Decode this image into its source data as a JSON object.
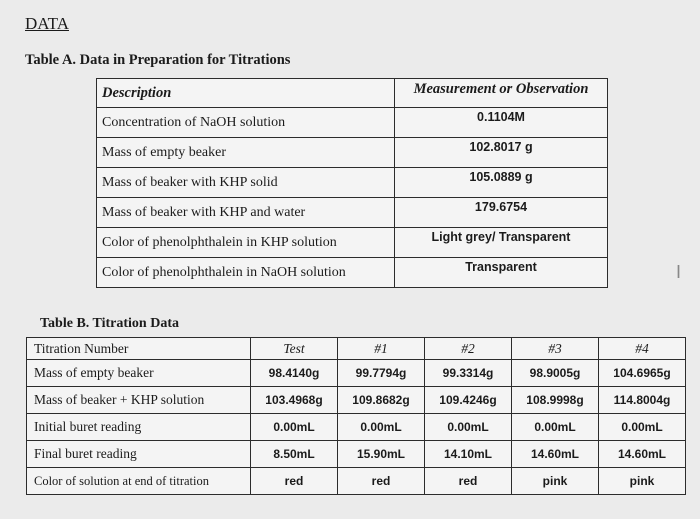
{
  "heading": "DATA",
  "tableA": {
    "caption": "Table A.  Data in Preparation for Titrations",
    "headers": [
      "Description",
      "Measurement or Observation"
    ],
    "rows": [
      [
        "Concentration of NaOH solution",
        "0.1104M"
      ],
      [
        "Mass of empty beaker",
        "102.8017 g"
      ],
      [
        "Mass of beaker with KHP solid",
        "105.0889 g"
      ],
      [
        "Mass of beaker with KHP and water",
        "179.6754"
      ],
      [
        "Color of phenolphthalein in KHP solution",
        "Light grey/ Transparent"
      ],
      [
        "Color of phenolphthalein in NaOH solution",
        "Transparent"
      ]
    ]
  },
  "tableB": {
    "caption": "Table B.  Titration Data",
    "headers": [
      "Titration Number",
      "Test",
      "#1",
      "#2",
      "#3",
      "#4"
    ],
    "rows": [
      [
        "Mass of empty beaker",
        "98.4140g",
        "99.7794g",
        "99.3314g",
        "98.9005g",
        "104.6965g"
      ],
      [
        "Mass of beaker + KHP solution",
        "103.4968g",
        "109.8682g",
        "109.4246g",
        "108.9998g",
        "114.8004g"
      ],
      [
        "Initial buret reading",
        "0.00mL",
        "0.00mL",
        "0.00mL",
        "0.00mL",
        "0.00mL"
      ],
      [
        "Final buret reading",
        "8.50mL",
        "15.90mL",
        "14.10mL",
        "14.60mL",
        "14.60mL"
      ],
      [
        "Color of solution at end of titration",
        "red",
        "red",
        "red",
        "pink",
        "pink"
      ]
    ]
  },
  "cursor_glyph": "I"
}
